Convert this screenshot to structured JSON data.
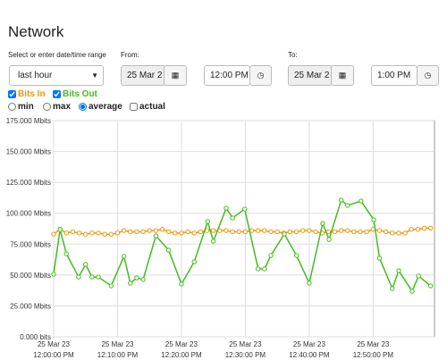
{
  "header": {
    "title": "Network"
  },
  "form": {
    "range_label": "Select or enter date/time range",
    "range_value": "last hour",
    "from_label": "From:",
    "from_date": "25 Mar 2",
    "from_time": "12:00 PM",
    "to_label": "To:",
    "to_date": "25 Mar 2",
    "to_time": "1:00 PM"
  },
  "options": {
    "checkboxes": [
      {
        "label": "Bits In",
        "checked": true,
        "color": "#f0960a"
      },
      {
        "label": "Bits Out",
        "checked": true,
        "color": "#44bb22"
      }
    ],
    "radios": [
      {
        "label": "min",
        "checked": false
      },
      {
        "label": "max",
        "checked": false
      },
      {
        "label": "average",
        "checked": true
      }
    ],
    "actual": {
      "label": "actual",
      "checked": false
    }
  },
  "chart_data": {
    "type": "line",
    "grid": true,
    "xlim": [
      0,
      59.6
    ],
    "xticks": [
      {
        "value": 0,
        "label": [
          "25 Mar 23",
          "12:00:00 PM"
        ]
      },
      {
        "value": 10,
        "label": [
          "25 Mar 23",
          "12:10:00 PM"
        ]
      },
      {
        "value": 20,
        "label": [
          "25 Mar 23",
          "12:20:00 PM"
        ]
      },
      {
        "value": 30,
        "label": [
          "25 Mar 23",
          "12:30:00 PM"
        ]
      },
      {
        "value": 40,
        "label": [
          "25 Mar 23",
          "12:40:00 PM"
        ]
      },
      {
        "value": 50,
        "label": [
          "25 Mar 23",
          "12:50:00 PM"
        ]
      }
    ],
    "ylim": [
      0,
      175
    ],
    "yticks": [
      {
        "value": 0,
        "label": "0.000 bits"
      },
      {
        "value": 25,
        "label": "25.000 Mbits"
      },
      {
        "value": 50,
        "label": "50.000 Mbits"
      },
      {
        "value": 75,
        "label": "75.000 Mbits"
      },
      {
        "value": 100,
        "label": "100.000 Mbits"
      },
      {
        "value": 125,
        "label": "125.000 Mbits"
      },
      {
        "value": 150,
        "label": "150.000 Mbits"
      },
      {
        "value": 175,
        "label": "175.000 Mbits"
      }
    ],
    "series": [
      {
        "name": "Bits In",
        "color": "#f0960a",
        "x": [
          0,
          1,
          2,
          3,
          4,
          5,
          6,
          7,
          8,
          9,
          10,
          11,
          12,
          13,
          14,
          15,
          16,
          17,
          18,
          19,
          20,
          21,
          22,
          23,
          24,
          25,
          26,
          27,
          28,
          29,
          30,
          31,
          32,
          33,
          34,
          35,
          36,
          37,
          38,
          39,
          40,
          41,
          42,
          43,
          44,
          45,
          46,
          47,
          48,
          49,
          50,
          51,
          52,
          53,
          54,
          55,
          56,
          57,
          58,
          59
        ],
        "values": [
          83,
          87,
          84,
          85,
          84,
          83,
          84,
          84,
          83,
          83,
          84,
          86,
          85,
          85,
          85,
          86,
          86,
          87,
          85,
          84,
          84,
          85,
          84,
          85,
          86,
          86,
          86,
          86,
          85,
          85,
          85,
          86,
          86,
          86,
          85,
          85,
          84,
          85,
          85,
          86,
          86,
          85,
          84,
          85,
          85,
          86,
          86,
          85,
          85,
          85,
          87,
          86,
          85,
          84,
          84,
          84,
          87,
          87,
          88,
          88
        ]
      },
      {
        "name": "Bits Out",
        "color": "#44bb22",
        "x": [
          0,
          1,
          2,
          3.9,
          5,
          6,
          7,
          9,
          11,
          12,
          13,
          14,
          16,
          18,
          20,
          22,
          24.1,
          25,
          27,
          28,
          29.9,
          32,
          33,
          34,
          36.1,
          38,
          40,
          42.1,
          43.1,
          45,
          46,
          48.1,
          50.1,
          51,
          53,
          54,
          56.1,
          57.1,
          59
        ],
        "values": [
          50.6,
          86.8,
          67.2,
          48.4,
          58.6,
          48.4,
          48.4,
          41.2,
          65.1,
          43.4,
          47.7,
          46.3,
          81.7,
          70.1,
          42.7,
          60.7,
          93.3,
          77.4,
          104.1,
          96.2,
          103.4,
          55,
          55,
          65.8,
          83.2,
          65.8,
          43.4,
          91.8,
          78.8,
          110.6,
          106.3,
          109.9,
          94.7,
          63.6,
          39,
          53.5,
          36.9,
          49.2,
          41.2
        ]
      }
    ]
  }
}
